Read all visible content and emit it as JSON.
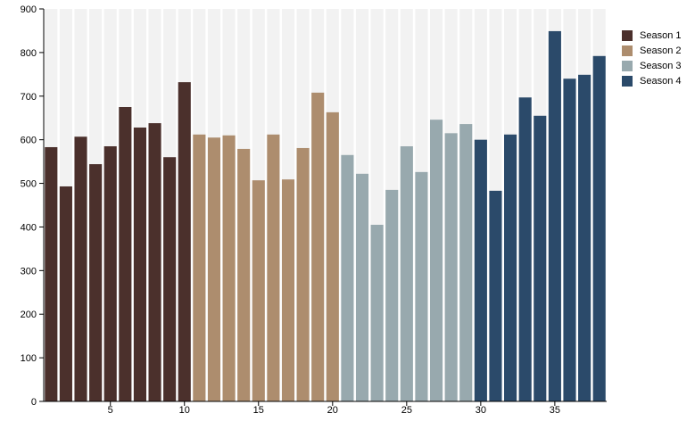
{
  "chart_data": {
    "type": "bar",
    "title": "",
    "xlabel": "",
    "ylabel": "",
    "ylim": [
      0,
      900
    ],
    "yticks": [
      0,
      100,
      200,
      300,
      400,
      500,
      600,
      700,
      800,
      900
    ],
    "xticks": [
      5,
      10,
      15,
      20,
      25,
      30,
      35
    ],
    "x": [
      1,
      2,
      3,
      4,
      5,
      6,
      7,
      8,
      9,
      10,
      11,
      12,
      13,
      14,
      15,
      16,
      17,
      18,
      19,
      20,
      21,
      22,
      23,
      24,
      25,
      26,
      27,
      28,
      29,
      30,
      31,
      32,
      33,
      34,
      35,
      36,
      37,
      38
    ],
    "legend_position": "right",
    "grid": false,
    "series": [
      {
        "name": "Season 1",
        "color": "#4b302c",
        "x": [
          1,
          2,
          3,
          4,
          5,
          6,
          7,
          8,
          9,
          10
        ],
        "values": [
          583,
          493,
          607,
          544,
          585,
          675,
          628,
          638,
          560,
          732
        ]
      },
      {
        "name": "Season 2",
        "color": "#ad8d6e",
        "x": [
          11,
          12,
          13,
          14,
          15,
          16,
          17,
          18,
          19,
          20
        ],
        "values": [
          612,
          605,
          610,
          579,
          507,
          612,
          509,
          581,
          708,
          663
        ]
      },
      {
        "name": "Season 3",
        "color": "#98a9ae",
        "x": [
          21,
          22,
          23,
          24,
          25,
          26,
          27,
          28,
          29
        ],
        "values": [
          565,
          522,
          405,
          485,
          585,
          526,
          646,
          615,
          636
        ]
      },
      {
        "name": "Season 4",
        "color": "#2b4a6a",
        "x": [
          30,
          31,
          32,
          33,
          34,
          35,
          36,
          37,
          38
        ],
        "values": [
          600,
          483,
          612,
          697,
          655,
          849,
          740,
          749,
          792
        ]
      }
    ]
  }
}
